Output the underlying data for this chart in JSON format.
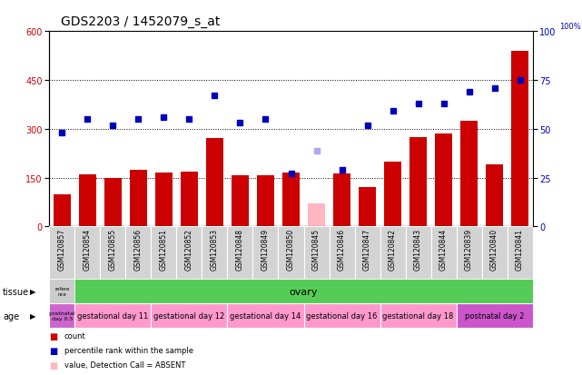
{
  "title": "GDS2203 / 1452079_s_at",
  "samples": [
    "GSM120857",
    "GSM120854",
    "GSM120855",
    "GSM120856",
    "GSM120851",
    "GSM120852",
    "GSM120853",
    "GSM120848",
    "GSM120849",
    "GSM120850",
    "GSM120845",
    "GSM120846",
    "GSM120847",
    "GSM120842",
    "GSM120843",
    "GSM120844",
    "GSM120839",
    "GSM120840",
    "GSM120841"
  ],
  "count_values": [
    100,
    160,
    150,
    175,
    165,
    168,
    272,
    158,
    158,
    165,
    70,
    163,
    120,
    198,
    275,
    285,
    325,
    190,
    540
  ],
  "count_absent": [
    false,
    false,
    false,
    false,
    false,
    false,
    false,
    false,
    false,
    false,
    true,
    false,
    false,
    false,
    false,
    false,
    false,
    false,
    false
  ],
  "rank_values": [
    48,
    55,
    52,
    55,
    56,
    55,
    67,
    53,
    55,
    27,
    39,
    29,
    52,
    59,
    63,
    63,
    69,
    71,
    75
  ],
  "rank_absent": [
    false,
    false,
    false,
    false,
    false,
    false,
    false,
    false,
    false,
    false,
    true,
    false,
    false,
    false,
    false,
    false,
    false,
    false,
    false
  ],
  "ylim_left": [
    0,
    600
  ],
  "ylim_right": [
    0,
    100
  ],
  "yticks_left": [
    0,
    150,
    300,
    450,
    600
  ],
  "yticks_right": [
    0,
    25,
    50,
    75,
    100
  ],
  "bar_color": "#CC0000",
  "bar_absent_color": "#FFB6C1",
  "rank_color": "#0000BB",
  "rank_absent_color": "#AAAAEE",
  "tissue_first_color": "#CCCCCC",
  "tissue_rest_color": "#55CC55",
  "age_groups": [
    {
      "label": "postnatal\nday 0.5",
      "start": 0,
      "end": 1,
      "color": "#CC66CC"
    },
    {
      "label": "gestational day 11",
      "start": 1,
      "end": 4,
      "color": "#FF99CC"
    },
    {
      "label": "gestational day 12",
      "start": 4,
      "end": 7,
      "color": "#FF99CC"
    },
    {
      "label": "gestational day 14",
      "start": 7,
      "end": 10,
      "color": "#FF99CC"
    },
    {
      "label": "gestational day 16",
      "start": 10,
      "end": 13,
      "color": "#FF99CC"
    },
    {
      "label": "gestational day 18",
      "start": 13,
      "end": 16,
      "color": "#FF99CC"
    },
    {
      "label": "postnatal day 2",
      "start": 16,
      "end": 19,
      "color": "#CC55CC"
    }
  ],
  "background_color": "#FFFFFF",
  "title_fontsize": 10,
  "tick_fontsize": 7,
  "label_fontsize": 7
}
